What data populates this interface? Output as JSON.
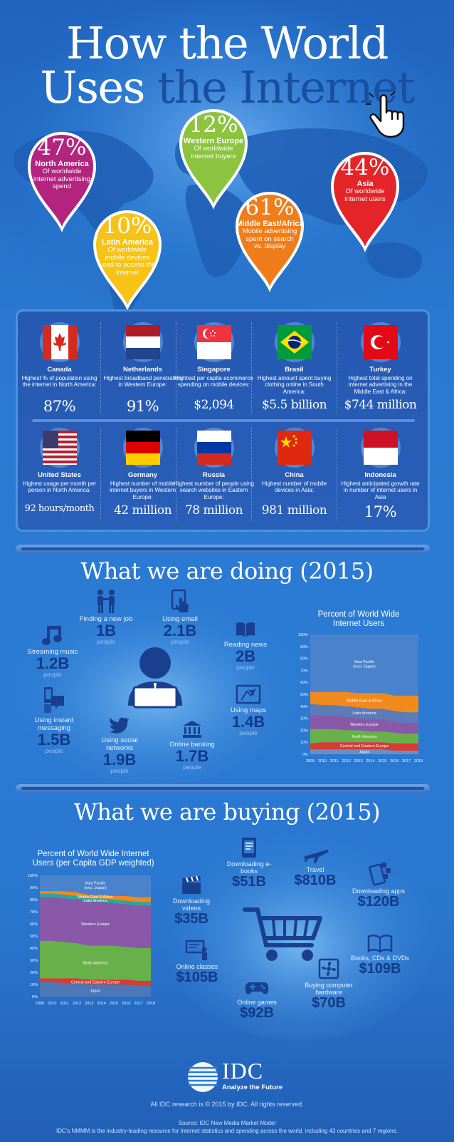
{
  "header": {
    "title_line1": "How the World",
    "title_line2_white": "Uses",
    "title_line2_dark": "the Internet"
  },
  "pins": [
    {
      "pct": "47%",
      "region": "North America",
      "desc": "Of worldwide internet advertising spend",
      "color": "#b3247f"
    },
    {
      "pct": "10%",
      "region": "Latin America",
      "desc": "Of worldwide mobile devices used to access the internet",
      "color": "#f6c316"
    },
    {
      "pct": "12%",
      "region": "Western Europe",
      "desc": "Of worldwide internet buyers",
      "color": "#8cc43f"
    },
    {
      "pct": "61%",
      "region": "Middle East/Africa",
      "desc": "Mobile advertising spent on search vs. display",
      "color": "#ef7d1a"
    },
    {
      "pct": "44%",
      "region": "Asia",
      "desc": "Of worldwide internet users",
      "color": "#e42428"
    }
  ],
  "countries": [
    {
      "name": "Canada",
      "desc": "Highest % of population using the internet in North America:",
      "stat": "87%",
      "flag": "canada-flag-icon"
    },
    {
      "name": "Netherlands",
      "desc": "Highest broadband penetration in Western Europe:",
      "stat": "91%",
      "flag": "netherlands-flag-icon"
    },
    {
      "name": "Singapore",
      "desc": "Hightest  per capita ecommerce spending on mobile devices:",
      "stat": "$2,094",
      "flag": "singapore-flag-icon"
    },
    {
      "name": "Brasil",
      "desc": "Highest amount spent buying clothing online in South America:",
      "stat": "$5.5 billion",
      "flag": "brazil-flag-icon"
    },
    {
      "name": "Turkey",
      "desc": "Highest total spending on internet advertising in the Middle East & Africa:",
      "stat": "$744 million",
      "flag": "turkey-flag-icon"
    },
    {
      "name": "United States",
      "desc": "Highest usage per month per person in North America:",
      "stat": "92 hours/month",
      "flag": "usa-flag-icon"
    },
    {
      "name": "Germany",
      "desc": "Highest number of mobile internet buyers in Western Europe:",
      "stat": "42 million",
      "flag": "germany-flag-icon"
    },
    {
      "name": "Russia",
      "desc": "Highest number of people using search websites in Eastern Europe:",
      "stat": "78 million",
      "flag": "russia-flag-icon"
    },
    {
      "name": "China",
      "desc": "Highest number of mobile devices in Asia:",
      "stat": "981 million",
      "flag": "china-flag-icon"
    },
    {
      "name": "Indonesia",
      "desc": "Highest anticipated growth rate in number of internet users in Asia",
      "stat": "17%",
      "flag": "indonesia-flag-icon"
    }
  ],
  "doing": {
    "title": "What we are doing (2015)",
    "items": [
      {
        "label": "Finding a new job",
        "value": "1B",
        "unit": "people",
        "icon": "handshake-icon"
      },
      {
        "label": "Using email",
        "value": "2.1B",
        "unit": "people",
        "icon": "tablet-tap-icon"
      },
      {
        "label": "Reading news",
        "value": "2B",
        "unit": "people",
        "icon": "open-book-icon"
      },
      {
        "label": "Streaming music",
        "value": "1.2B",
        "unit": "people",
        "icon": "music-note-icon"
      },
      {
        "label": "Using maps",
        "value": "1.4B",
        "unit": "people",
        "icon": "map-pointer-icon"
      },
      {
        "label": "Using instant messaging",
        "value": "1.5B",
        "unit": "people",
        "icon": "phone-chat-icon"
      },
      {
        "label": "Using social networks",
        "value": "1.9B",
        "unit": "people",
        "icon": "bird-icon"
      },
      {
        "label": "Online banking",
        "value": "1.7B",
        "unit": "people",
        "icon": "bank-icon"
      }
    ]
  },
  "buying": {
    "title": "What we are buying (2015)",
    "items": [
      {
        "label": "Downloading e-books",
        "value": "$51B",
        "icon": "ebook-icon"
      },
      {
        "label": "Travel",
        "value": "$810B",
        "icon": "airplane-icon"
      },
      {
        "label": "Downloading videos",
        "value": "$35B",
        "icon": "clapperboard-icon"
      },
      {
        "label": "Downloading apps",
        "value": "$120B",
        "icon": "phone-apps-icon"
      },
      {
        "label": "Books, CDs & DVDs",
        "value": "$109B",
        "icon": "book-icon"
      },
      {
        "label": "Online classes",
        "value": "$105B",
        "icon": "classroom-icon"
      },
      {
        "label": "Online games",
        "value": "$92B",
        "icon": "gamepad-icon"
      },
      {
        "label": "Buying computer hardware",
        "value": "$70B",
        "icon": "computer-fan-icon"
      }
    ]
  },
  "chart_data": [
    {
      "type": "area",
      "stacked": true,
      "title": "Percent of World Wide Internet Users",
      "x": [
        "2009",
        "2010",
        "2011",
        "2012",
        "2013",
        "2014",
        "2015",
        "2016",
        "2017",
        "2018"
      ],
      "ylim": [
        0,
        100
      ],
      "yticks": [
        "0%",
        "10%",
        "20%",
        "30%",
        "40%",
        "50%",
        "60%",
        "70%",
        "80%",
        "90%",
        "100%"
      ],
      "series": [
        {
          "name": "Japan",
          "color": "#6b8fc4",
          "values": [
            4,
            4,
            4,
            4,
            4,
            4,
            4,
            3,
            3,
            3
          ]
        },
        {
          "name": "Central and Eastern Europe",
          "color": "#d93a34",
          "values": [
            5,
            6,
            6,
            6,
            6,
            6,
            6,
            6,
            6,
            6
          ]
        },
        {
          "name": "North America",
          "color": "#68b14a",
          "values": [
            12,
            11,
            11,
            10,
            10,
            9,
            9,
            9,
            8,
            8
          ]
        },
        {
          "name": "Western Europe",
          "color": "#8a58a9",
          "values": [
            12,
            11,
            11,
            11,
            10,
            10,
            10,
            9,
            9,
            9
          ]
        },
        {
          "name": "Latin America",
          "color": "#5d7bb9",
          "values": [
            9,
            9,
            9,
            9,
            9,
            9,
            9,
            9,
            9,
            9
          ]
        },
        {
          "name": "Middle East & Africa",
          "color": "#f08a1c",
          "values": [
            10,
            11,
            11,
            12,
            12,
            13,
            13,
            13,
            14,
            14
          ]
        },
        {
          "name": "Asia Pacific (excl. Japan)",
          "color": "#4a82cc",
          "values": [
            48,
            48,
            48,
            48,
            49,
            49,
            49,
            51,
            51,
            51
          ]
        }
      ]
    },
    {
      "type": "area",
      "stacked": true,
      "title": "Percent of World Wide Internet Users (per Capita GDP weighted)",
      "x": [
        "2009",
        "2010",
        "2011",
        "2012",
        "2013",
        "2014",
        "2015",
        "2016",
        "2017",
        "2018"
      ],
      "ylim": [
        0,
        100
      ],
      "yticks": [
        "0%",
        "10%",
        "20%",
        "30%",
        "40%",
        "50%",
        "60%",
        "70%",
        "80%",
        "90%",
        "100%"
      ],
      "series": [
        {
          "name": "Japan",
          "color": "#4d77b5",
          "values": [
            12,
            12,
            11,
            11,
            10,
            10,
            10,
            10,
            9,
            9
          ]
        },
        {
          "name": "Central and Eastern Europe",
          "color": "#d93a34",
          "values": [
            3,
            3,
            4,
            4,
            4,
            4,
            4,
            4,
            4,
            4
          ]
        },
        {
          "name": "North America",
          "color": "#68b14a",
          "values": [
            31,
            31,
            30,
            29,
            28,
            28,
            28,
            27,
            27,
            27
          ]
        },
        {
          "name": "Western Europe",
          "color": "#8a58a9",
          "values": [
            36,
            36,
            36,
            36,
            36,
            36,
            35,
            35,
            35,
            35
          ]
        },
        {
          "name": "Latin America",
          "color": "#2aa5a0",
          "values": [
            3,
            3,
            3,
            3,
            3,
            3,
            3,
            3,
            3,
            3
          ]
        },
        {
          "name": "Middle East & Africa",
          "color": "#f08a1c",
          "values": [
            2,
            2,
            3,
            3,
            3,
            3,
            3,
            4,
            4,
            4
          ]
        },
        {
          "name": "Asia Pacific (excl. Japan)",
          "color": "#4a82cc",
          "values": [
            13,
            13,
            13,
            14,
            16,
            16,
            17,
            17,
            18,
            18
          ]
        }
      ]
    }
  ],
  "footer": {
    "logo": "IDC",
    "tagline": "Analyze the Future",
    "copyright": "All IDC research is © 2015 by IDC. All rights reserved.",
    "source": "Source: IDC New Media Market Model",
    "note": "IDC's NMMM is the industry-leading resource for Internet statistics and spending across the world, including 43 countries and 7 regions."
  }
}
